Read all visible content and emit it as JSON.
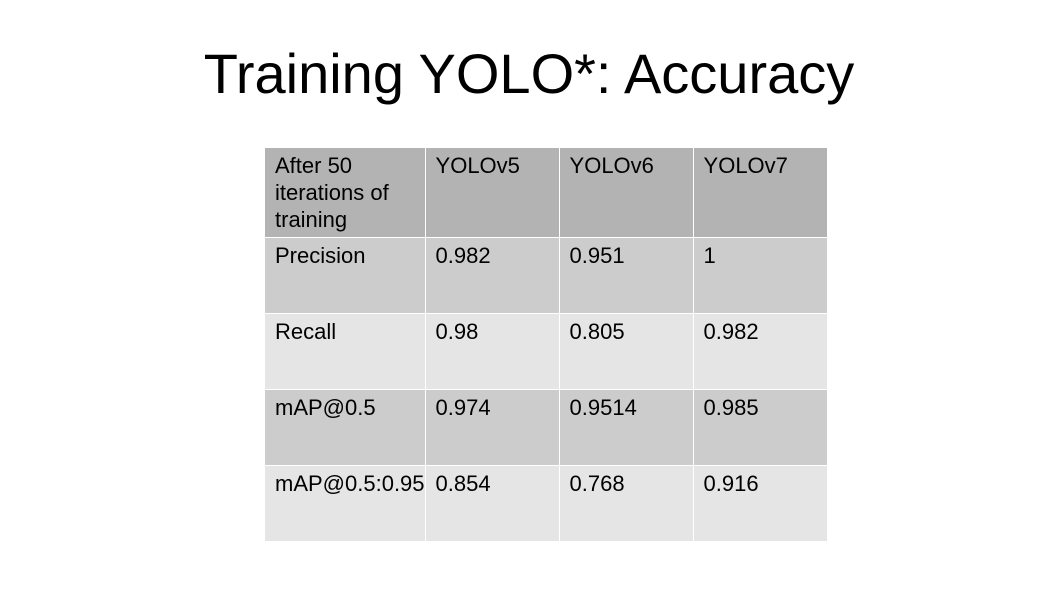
{
  "slide": {
    "title": "Training YOLO*: Accuracy"
  },
  "table": {
    "header": [
      "After 50 iterations of training",
      "YOLOv5",
      "YOLOv6",
      "YOLOv7"
    ],
    "rows": [
      [
        "Precision",
        "0.982",
        "0.951",
        "1"
      ],
      [
        "Recall",
        "0.98",
        "0.805",
        "0.982"
      ],
      [
        "mAP@0.5",
        "0.974",
        "0.9514",
        "0.985"
      ],
      [
        "mAP@0.5:0.95",
        "0.854",
        "0.768",
        "0.916"
      ]
    ]
  },
  "colors": {
    "header_fill": "#b3b3b3",
    "odd_row_fill": "#cccccc",
    "even_row_fill": "#e5e5e5",
    "grid_lines": "#ffffff"
  }
}
